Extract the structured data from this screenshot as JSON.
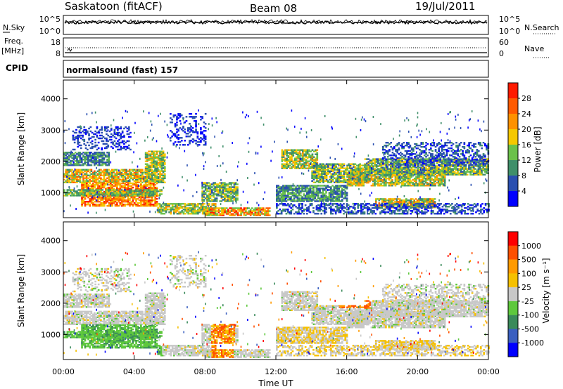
{
  "header": {
    "radar": "Saskatoon (fitACF)",
    "beam": "Beam 08",
    "date": "19/Jul/2011"
  },
  "panels": {
    "nsky_label": "N.Sky",
    "nsearch_label": "N.Search",
    "freq_label_top": "Freq.",
    "freq_label_unit": "[MHz]",
    "nave_label": "Nave",
    "cpid_label": "CPID",
    "cpid_text": "normalsound (fast) 157",
    "noise_left_ticks": [
      "10^5",
      "10^0"
    ],
    "noise_right_ticks": [
      "10^5",
      "10^0"
    ],
    "freq_left_ticks": [
      "18",
      "8"
    ],
    "freq_right_ticks": [
      "60",
      "0"
    ]
  },
  "colors": {
    "power_scale": [
      "#0000ff",
      "#2a4fb0",
      "#3f8f6a",
      "#6bc14a",
      "#f5c800",
      "#ff9100",
      "#ff5a00",
      "#ff1a00"
    ],
    "velocity_scale": [
      "#0000ff",
      "#3a5fc0",
      "#3a8a5a",
      "#5ec83c",
      "#c8c8c8",
      "#f5c000",
      "#ff9a00",
      "#ff5000",
      "#ff0000"
    ]
  },
  "chart_data": [
    {
      "type": "heatmap",
      "name": "power",
      "xlabel": "Time UT",
      "ylabel": "Slant Range [km]",
      "ylim": [
        200,
        4600
      ],
      "y_ticks": [
        "1000",
        "2000",
        "3000",
        "4000"
      ],
      "x_ticks": [
        "00:00",
        "04:00",
        "08:00",
        "12:00",
        "16:00",
        "20:00",
        "00:00"
      ],
      "colorbar_label": "Power [dB]",
      "colorbar_ticks": [
        "4",
        "8",
        "12",
        "16",
        "20",
        "24",
        "28"
      ]
    },
    {
      "type": "heatmap",
      "name": "velocity",
      "xlabel": "Time UT",
      "ylabel": "Slant Range [km]",
      "ylim": [
        200,
        4600
      ],
      "y_ticks": [
        "1000",
        "2000",
        "3000",
        "4000"
      ],
      "x_ticks": [
        "00:00",
        "04:00",
        "08:00",
        "12:00",
        "16:00",
        "20:00",
        "00:00"
      ],
      "colorbar_label": "Velocity [m s⁻¹]",
      "colorbar_ticks": [
        "1000",
        "500",
        "100",
        "25",
        "-25",
        "-100",
        "-500",
        "-1000"
      ]
    }
  ]
}
